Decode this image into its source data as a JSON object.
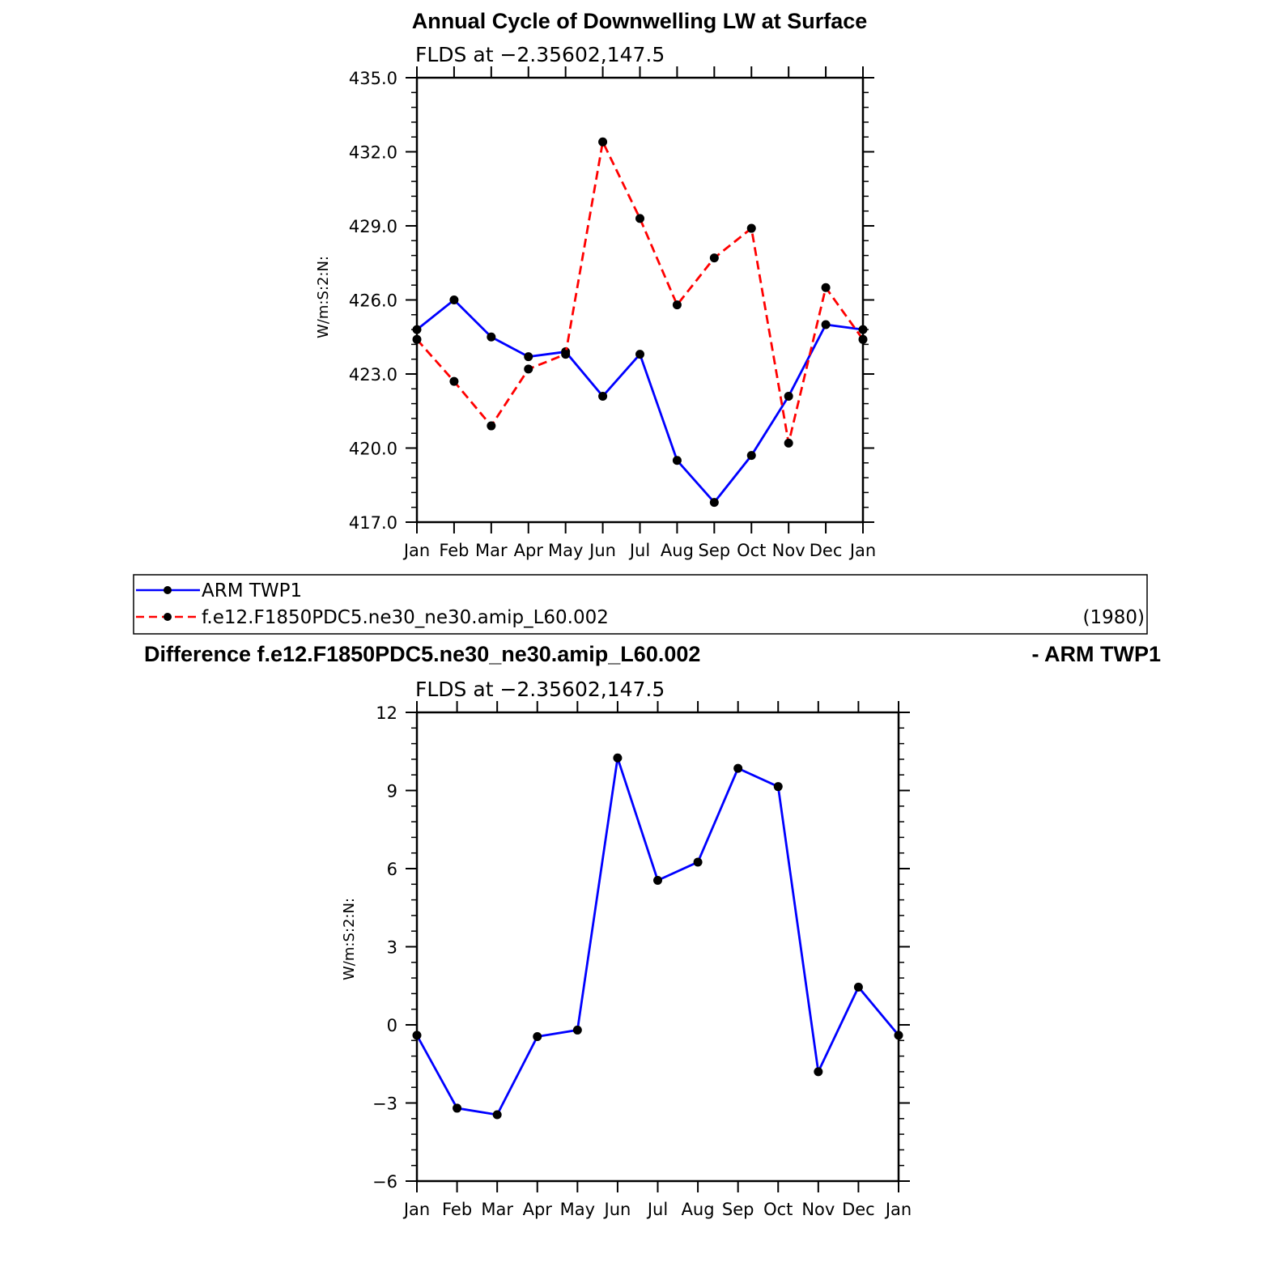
{
  "chart_data": [
    {
      "type": "line",
      "title": "Annual Cycle of Downwelling LW at Surface",
      "subtitle": "FLDS at −2.35602,147.5",
      "ylabel": "W/m:S:2:N:",
      "categories": [
        "Jan",
        "Feb",
        "Mar",
        "Apr",
        "May",
        "Jun",
        "Jul",
        "Aug",
        "Sep",
        "Oct",
        "Nov",
        "Dec",
        "Jan"
      ],
      "ylim": [
        417.0,
        435.0
      ],
      "yticks": [
        "417.0",
        "420.0",
        "423.0",
        "426.0",
        "429.0",
        "432.0",
        "435.0"
      ],
      "series": [
        {
          "name": "ARM TWP1",
          "color": "#0000ff",
          "dash": "solid",
          "values": [
            424.8,
            426.0,
            424.5,
            423.7,
            423.9,
            422.1,
            423.8,
            419.5,
            417.8,
            419.7,
            422.1,
            425.0,
            424.8
          ]
        },
        {
          "name": "f.e12.F1850PDC5.ne30_ne30.amip_L60.002",
          "color": "#ff0000",
          "dash": "dashed",
          "values": [
            424.4,
            422.7,
            420.9,
            423.2,
            423.8,
            432.4,
            429.3,
            425.8,
            427.7,
            428.9,
            420.2,
            426.5,
            424.4
          ]
        }
      ],
      "legend": {
        "entries": [
          "ARM TWP1",
          "f.e12.F1850PDC5.ne30_ne30.amip_L60.002"
        ],
        "year": "(1980)"
      }
    },
    {
      "type": "line",
      "title_left": "Difference f.e12.F1850PDC5.ne30_ne30.amip_L60.002",
      "title_right": "- ARM TWP1",
      "subtitle": "FLDS at −2.35602,147.5",
      "ylabel": "W/m:S:2:N:",
      "categories": [
        "Jan",
        "Feb",
        "Mar",
        "Apr",
        "May",
        "Jun",
        "Jul",
        "Aug",
        "Sep",
        "Oct",
        "Nov",
        "Dec",
        "Jan"
      ],
      "ylim": [
        -6,
        12
      ],
      "yticks": [
        "−6",
        "−3",
        "0",
        "3",
        "6",
        "9",
        "12"
      ],
      "series": [
        {
          "color": "#0000ff",
          "dash": "solid",
          "values": [
            -0.4,
            -3.2,
            -3.45,
            -0.45,
            -0.2,
            10.25,
            5.55,
            6.25,
            9.85,
            9.15,
            -1.8,
            1.45,
            -0.4
          ]
        }
      ]
    }
  ]
}
